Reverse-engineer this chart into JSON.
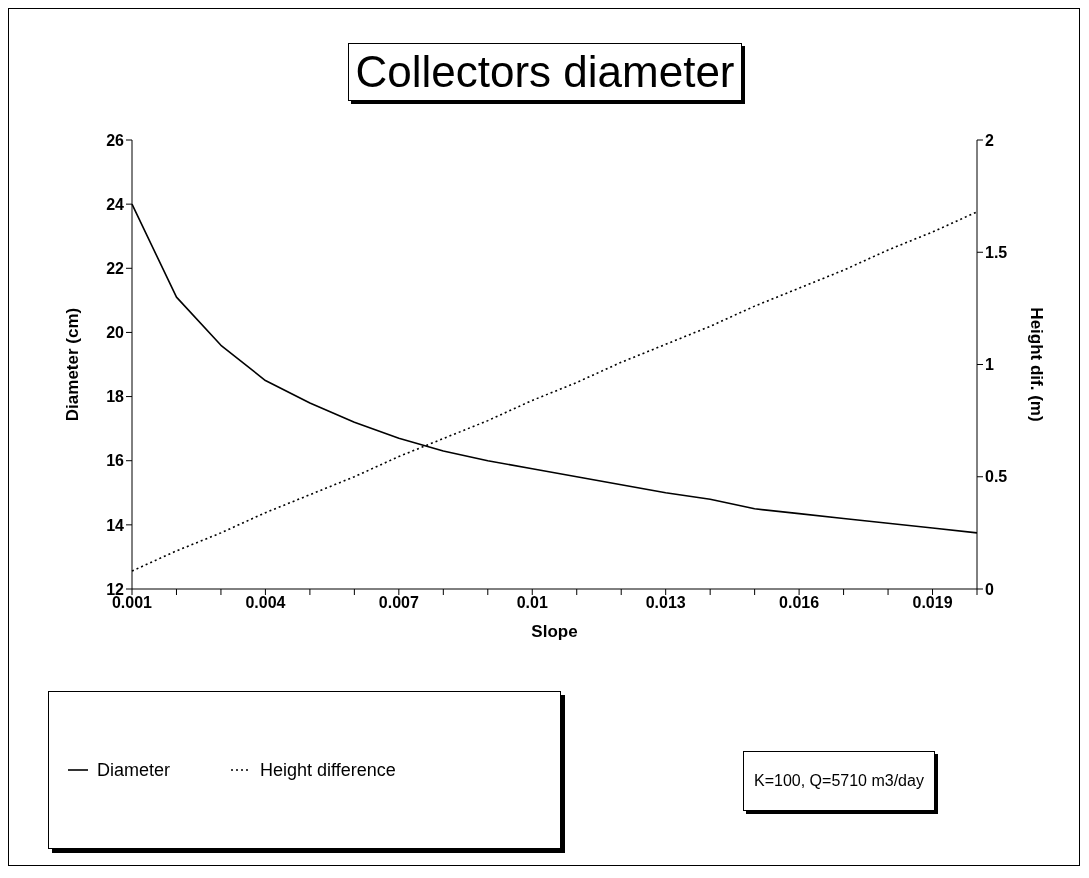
{
  "chart_data": {
    "type": "line",
    "title": "Collectors diameter",
    "xlabel": "Slope",
    "ylabel": "Diameter (cm)",
    "y2label": "Height dif. (m)",
    "categories": [
      "0.001",
      null,
      null,
      "0.004",
      null,
      null,
      "0.007",
      null,
      null,
      "0.01",
      null,
      null,
      "0.013",
      null,
      null,
      "0.016",
      null,
      null,
      "0.019",
      null
    ],
    "series": [
      {
        "name": "Diameter",
        "color": "#000000",
        "line_style": "solid",
        "values": [
          24.0,
          21.1,
          19.6,
          18.5,
          17.8,
          17.2,
          16.7,
          16.3,
          16.0,
          15.75,
          15.5,
          15.25,
          15.0,
          14.8,
          14.5,
          14.35,
          14.2,
          14.05,
          13.9,
          13.75
        ]
      },
      {
        "name": "Height difference",
        "color": "#000000",
        "line_style": "dotted",
        "axis": "y2",
        "values": [
          0.08,
          0.17,
          0.25,
          0.34,
          0.42,
          0.5,
          0.59,
          0.67,
          0.75,
          0.84,
          0.92,
          1.01,
          1.09,
          1.17,
          1.26,
          1.34,
          1.42,
          1.51,
          1.59,
          1.68
        ]
      }
    ],
    "ylim": [
      12,
      26
    ],
    "yticks": [
      12,
      14,
      16,
      18,
      20,
      22,
      24,
      26
    ],
    "y2lim": [
      0,
      2
    ],
    "y2ticks": [
      0,
      0.5,
      1,
      1.5,
      2
    ],
    "marker": "none",
    "legend": "bottom left",
    "annotations": [
      "K=100, Q=5710 m3/day"
    ]
  }
}
